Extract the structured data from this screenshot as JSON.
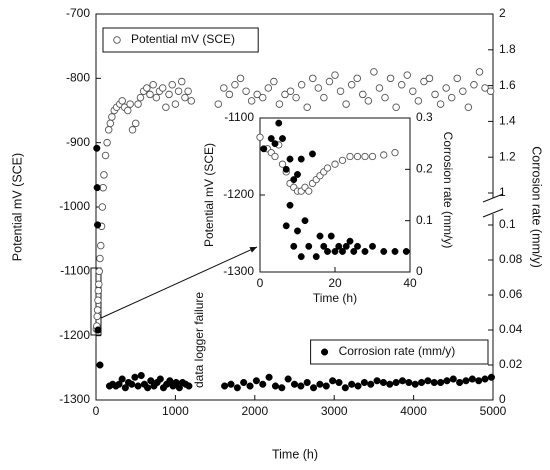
{
  "chart_data": [
    {
      "type": "scatter",
      "xlabel": "Time (h)",
      "ylabel": "Potential mV (SCE)",
      "y2label": "Corrosion rate (mm/y)",
      "annotation": "data logger failure",
      "xlim": [
        0,
        5000
      ],
      "xticks": [
        0,
        1000,
        2000,
        3000,
        4000,
        5000
      ],
      "ylim": [
        -1300,
        -700
      ],
      "yticks": [
        -1300,
        -1200,
        -1100,
        -1000,
        -900,
        -800,
        -700
      ],
      "y2_segments": [
        {
          "lim": [
            0,
            0.1
          ],
          "ticks": [
            0,
            0.02,
            0.04,
            0.06,
            0.08,
            0.1
          ]
        },
        {
          "lim": [
            1,
            2
          ],
          "ticks": [
            1,
            1.2,
            1.4,
            1.6,
            1.8,
            2
          ]
        }
      ],
      "series": [
        {
          "name": "Potential mV (SCE)",
          "color": "#555555",
          "marker": "open",
          "legend_loc": "upper left",
          "x": [
            5,
            10,
            15,
            20,
            25,
            30,
            35,
            40,
            50,
            60,
            70,
            80,
            90,
            100,
            120,
            140,
            160,
            180,
            200,
            230,
            260,
            300,
            330,
            360,
            400,
            430,
            460,
            500,
            530,
            560,
            600,
            640,
            680,
            720,
            760,
            800,
            840,
            880,
            920,
            960,
            1000,
            1040,
            1080,
            1120,
            1160,
            1200,
            1540,
            1610,
            1680,
            1750,
            1820,
            1890,
            1960,
            2030,
            2100,
            2170,
            2240,
            2310,
            2380,
            2450,
            2520,
            2590,
            2660,
            2730,
            2800,
            2870,
            2940,
            3010,
            3080,
            3150,
            3220,
            3290,
            3360,
            3430,
            3500,
            3570,
            3640,
            3710,
            3780,
            3850,
            3920,
            3990,
            4060,
            4130,
            4200,
            4270,
            4340,
            4410,
            4480,
            4550,
            4620,
            4690,
            4760,
            4830,
            4900,
            4970
          ],
          "values": [
            -1190,
            -1185,
            -1170,
            -1160,
            -1145,
            -1130,
            -1120,
            -1100,
            -1080,
            -1060,
            -1030,
            -1000,
            -970,
            -950,
            -920,
            -900,
            -880,
            -870,
            -860,
            -850,
            -845,
            -840,
            -835,
            -845,
            -850,
            -840,
            -880,
            -870,
            -840,
            -830,
            -820,
            -815,
            -825,
            -810,
            -830,
            -820,
            -815,
            -845,
            -825,
            -810,
            -840,
            -820,
            -805,
            -830,
            -820,
            -835,
            -840,
            -815,
            -825,
            -810,
            -800,
            -820,
            -835,
            -825,
            -830,
            -815,
            -805,
            -840,
            -825,
            -820,
            -830,
            -810,
            -845,
            -800,
            -815,
            -830,
            -805,
            -795,
            -820,
            -840,
            -810,
            -800,
            -825,
            -835,
            -790,
            -815,
            -830,
            -800,
            -845,
            -810,
            -795,
            -820,
            -835,
            -805,
            -800,
            -825,
            -840,
            -815,
            -830,
            -800,
            -820,
            -845,
            -810,
            -790,
            -815,
            -820
          ]
        },
        {
          "name": "Corrosion rate (mm/y)",
          "color": "#000000",
          "marker": "filled",
          "axis": "y2",
          "legend_loc": "lower right",
          "x": [
            10,
            15,
            20,
            25,
            50,
            170,
            210,
            250,
            290,
            330,
            370,
            410,
            450,
            490,
            530,
            570,
            610,
            650,
            690,
            730,
            770,
            810,
            850,
            890,
            930,
            970,
            1010,
            1050,
            1090,
            1130,
            1170,
            1620,
            1700,
            1780,
            1860,
            1940,
            2020,
            2100,
            2180,
            2260,
            2340,
            2420,
            2500,
            2580,
            2660,
            2740,
            2820,
            2900,
            2980,
            3060,
            3140,
            3220,
            3300,
            3380,
            3460,
            3540,
            3620,
            3700,
            3780,
            3860,
            3940,
            4020,
            4100,
            4180,
            4260,
            4340,
            4420,
            4500,
            4580,
            4660,
            4740,
            4820,
            4900,
            4980
          ],
          "values": [
            1.25,
            1.03,
            0.102,
            0.04,
            0.02,
            0.008,
            0.009,
            0.008,
            0.009,
            0.012,
            0.007,
            0.01,
            0.009,
            0.013,
            0.008,
            0.014,
            0.009,
            0.007,
            0.011,
            0.008,
            0.01,
            0.012,
            0.007,
            0.009,
            0.011,
            0.008,
            0.01,
            0.007,
            0.01,
            0.009,
            0.008,
            0.008,
            0.009,
            0.007,
            0.01,
            0.008,
            0.011,
            0.009,
            0.013,
            0.008,
            0.007,
            0.012,
            0.009,
            0.008,
            0.01,
            0.007,
            0.009,
            0.008,
            0.011,
            0.01,
            0.007,
            0.009,
            0.008,
            0.01,
            0.009,
            0.011,
            0.01,
            0.009,
            0.01,
            0.011,
            0.01,
            0.009,
            0.01,
            0.011,
            0.01,
            0.01,
            0.011,
            0.012,
            0.01,
            0.011,
            0.012,
            0.011,
            0.012,
            0.013
          ]
        }
      ]
    },
    {
      "type": "scatter",
      "xlabel": "Time (h)",
      "ylabel": "Potential mV (SCE)",
      "y2label": "Corrosion rate (mm/y)",
      "xlim": [
        0,
        40
      ],
      "xticks": [
        0,
        20,
        40
      ],
      "ylim": [
        -1300,
        -1100
      ],
      "yticks": [
        -1300,
        -1200,
        -1100
      ],
      "y2lim": [
        0,
        0.3
      ],
      "y2ticks": [
        0,
        0.1,
        0.2,
        0.3
      ],
      "series": [
        {
          "color": "#555555",
          "marker": "open",
          "x": [
            0,
            2,
            3,
            4,
            5,
            6,
            7,
            8,
            9,
            10,
            11,
            12,
            13,
            14,
            15,
            16,
            17,
            18,
            20,
            22,
            24,
            26,
            28,
            30,
            33,
            36
          ],
          "values": [
            -1125,
            -1140,
            -1145,
            -1150,
            -1135,
            -1160,
            -1170,
            -1185,
            -1190,
            -1195,
            -1195,
            -1190,
            -1195,
            -1185,
            -1180,
            -1175,
            -1170,
            -1165,
            -1160,
            -1155,
            -1150,
            -1150,
            -1150,
            -1150,
            -1148,
            -1145
          ]
        },
        {
          "color": "#000000",
          "marker": "filled",
          "axis": "y2",
          "x": [
            1,
            3,
            4,
            5,
            6,
            7,
            7,
            8,
            8,
            9,
            9,
            10,
            10,
            11,
            11,
            12,
            13,
            14,
            15,
            16,
            17,
            18,
            19,
            20,
            21,
            22,
            23,
            24,
            25,
            26,
            28,
            30,
            33,
            36,
            39
          ],
          "values": [
            0.24,
            0.26,
            0.25,
            0.29,
            0.26,
            0.2,
            0.09,
            0.22,
            0.13,
            0.18,
            0.05,
            0.19,
            0.08,
            0.22,
            0.03,
            0.1,
            0.05,
            0.23,
            0.03,
            0.07,
            0.05,
            0.04,
            0.07,
            0.04,
            0.05,
            0.04,
            0.05,
            0.06,
            0.04,
            0.05,
            0.04,
            0.05,
            0.04,
            0.04,
            0.04
          ]
        }
      ]
    }
  ]
}
